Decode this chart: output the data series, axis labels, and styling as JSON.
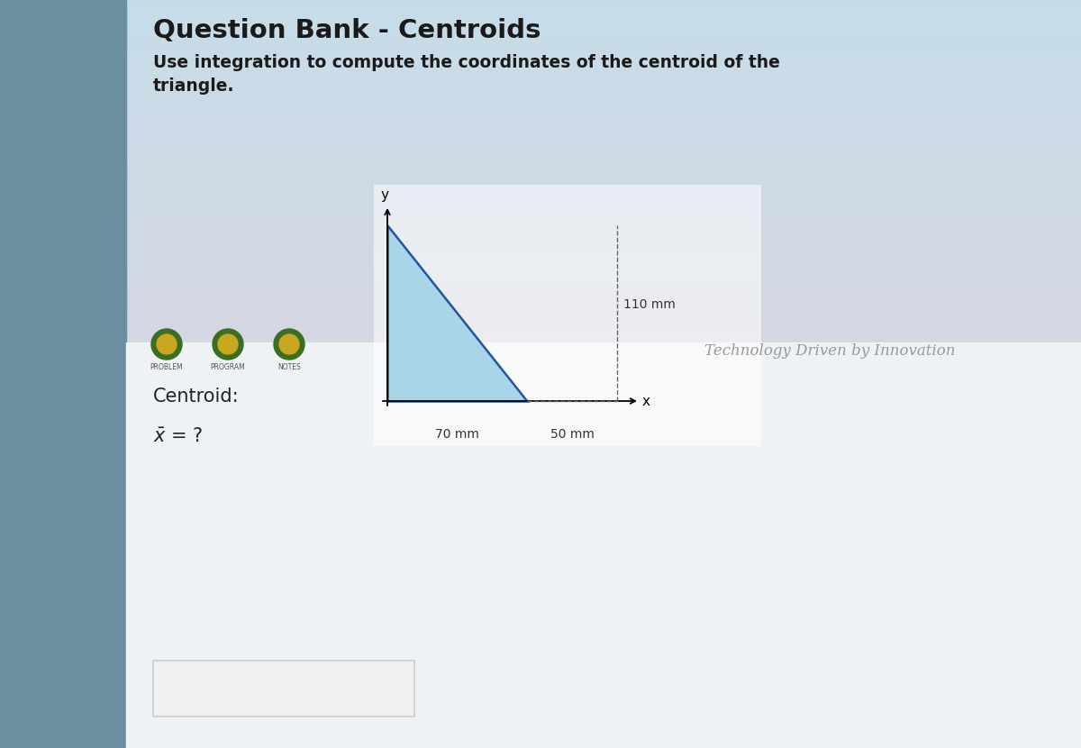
{
  "title": "Question Bank - Centroids",
  "subtitle": "Use integration to compute the coordinates of the centroid of the\ntriangle.",
  "left_bar_color": "#6b8fa0",
  "bg_upper_color": [
    0.78,
    0.86,
    0.9
  ],
  "bg_lower_color": [
    0.9,
    0.82,
    0.86
  ],
  "content_bg_color": "#eef2f5",
  "triangle_fill": "#aad4e8",
  "triangle_edge": "#2255a0",
  "dashed_color": "#666666",
  "dim_70": "70 mm",
  "dim_50": "50 mm",
  "dim_110": "110 mm",
  "centroid_label": "Centroid:",
  "xbar_label": "$\\bar{x}$ = ?",
  "watermark": "Technology Driven by Innovation",
  "dot_outer": "#3a6e20",
  "dot_inner": "#c8a820",
  "dot_labels": [
    "PROBLEM",
    "PROGRAM",
    "NOTES"
  ],
  "diagram_box_color": "#f5f5f0",
  "input_box_color": "#f0f0f0",
  "title_color": "#1a1a1a",
  "text_color": "#222222"
}
